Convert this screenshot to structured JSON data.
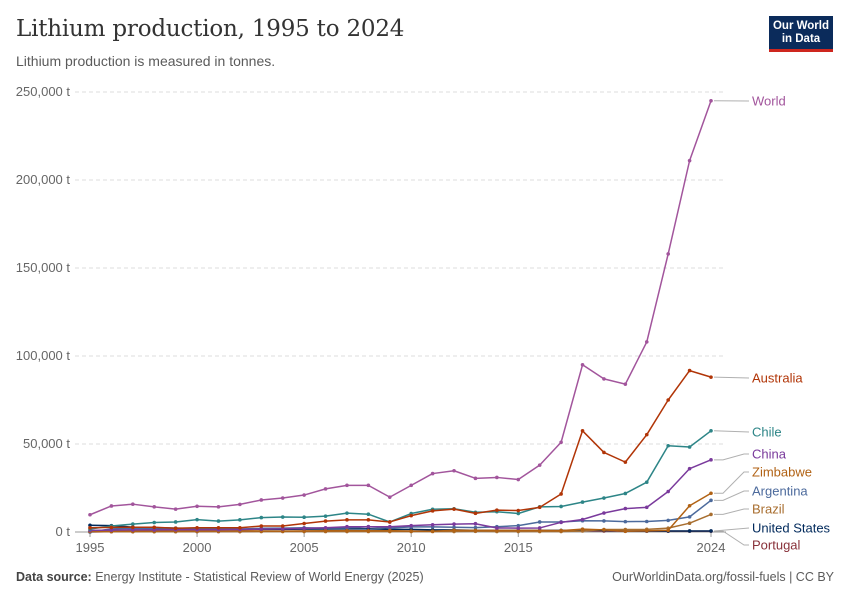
{
  "header": {
    "title": "Lithium production, 1995 to 2024",
    "subtitle": "Lithium production is measured in tonnes."
  },
  "logo": {
    "line1": "Our World",
    "line2": "in Data"
  },
  "footer": {
    "source_label": "Data source:",
    "source_text": "Energy Institute - Statistical Review of World Energy (2025)",
    "link": "OurWorldinData.org/fossil-fuels | CC BY"
  },
  "chart_data": {
    "type": "line",
    "title": "Lithium production, 1995 to 2024",
    "ylabel": "",
    "xlim": [
      1994.3,
      2024.7
    ],
    "ylim": [
      0,
      250000
    ],
    "y_ticks": [
      0,
      50000,
      100000,
      150000,
      200000,
      250000
    ],
    "y_tick_labels": [
      "0 t",
      "50,000 t",
      "100,000 t",
      "150,000 t",
      "200,000 t",
      "250,000 t"
    ],
    "x_ticks": [
      1995,
      2000,
      2005,
      2010,
      2015,
      2024
    ],
    "x_tick_labels": [
      "1995",
      "2000",
      "2005",
      "2010",
      "2015",
      "2024"
    ],
    "grid": "horizontal dashed",
    "x": [
      1995,
      1996,
      1997,
      1998,
      1999,
      2000,
      2001,
      2002,
      2003,
      2004,
      2005,
      2006,
      2007,
      2008,
      2009,
      2010,
      2011,
      2012,
      2013,
      2014,
      2015,
      2016,
      2017,
      2018,
      2019,
      2020,
      2021,
      2022,
      2023,
      2024
    ],
    "series": [
      {
        "name": "World",
        "color": "#a2559c",
        "values": [
          9800,
          14800,
          15800,
          14300,
          13000,
          14600,
          14300,
          15700,
          18200,
          19300,
          21000,
          24500,
          26500,
          26500,
          19800,
          26500,
          33200,
          34800,
          30500,
          31000,
          29800,
          38000,
          51000,
          95000,
          87000,
          84000,
          108000,
          158000,
          211000,
          245000
        ]
      },
      {
        "name": "Australia",
        "color": "#b13507",
        "values": [
          2400,
          2600,
          2700,
          2700,
          2100,
          2400,
          2400,
          2400,
          3400,
          3400,
          4800,
          6200,
          6900,
          6900,
          5700,
          9300,
          12000,
          13000,
          10600,
          12400,
          12200,
          14000,
          21600,
          57500,
          45200,
          39700,
          55300,
          75000,
          91700,
          88000
        ]
      },
      {
        "name": "Chile",
        "color": "#2d8587",
        "values": [
          1700,
          3400,
          4500,
          5400,
          5700,
          7000,
          6200,
          6900,
          8200,
          8500,
          8400,
          9000,
          10700,
          10100,
          5700,
          10500,
          12900,
          13200,
          11200,
          11500,
          10500,
          14300,
          14500,
          17000,
          19300,
          21900,
          28300,
          49000,
          48300,
          57500
        ]
      },
      {
        "name": "China",
        "color": "#7a3a9c",
        "values": [
          900,
          1100,
          1200,
          1200,
          1300,
          1300,
          1300,
          1400,
          1600,
          1800,
          2000,
          2400,
          3000,
          3000,
          3000,
          3600,
          4100,
          4500,
          4700,
          2300,
          2200,
          2300,
          5500,
          7100,
          10800,
          13300,
          14000,
          23000,
          36000,
          41000
        ]
      },
      {
        "name": "Zimbabwe",
        "color": "#b16214",
        "values": [
          350,
          400,
          450,
          500,
          550,
          600,
          550,
          700,
          600,
          500,
          650,
          700,
          750,
          700,
          750,
          500,
          450,
          1000,
          900,
          900,
          900,
          900,
          800,
          1600,
          1200,
          400,
          700,
          1000,
          14900,
          22000
        ]
      },
      {
        "name": "Argentina",
        "color": "#4c6a9c",
        "values": [
          0,
          1800,
          2000,
          1800,
          1800,
          1800,
          2000,
          1600,
          2100,
          2200,
          2400,
          2200,
          2300,
          3000,
          2300,
          2900,
          2900,
          2700,
          2500,
          3000,
          3600,
          5700,
          5700,
          6400,
          6300,
          5900,
          5970,
          6600,
          8600,
          18000
        ]
      },
      {
        "name": "Brazil",
        "color": "#a86e2f",
        "values": [
          200,
          200,
          200,
          200,
          200,
          300,
          300,
          300,
          300,
          300,
          300,
          300,
          300,
          300,
          300,
          300,
          300,
          300,
          400,
          300,
          300,
          300,
          300,
          600,
          1400,
          1400,
          1500,
          2200,
          5000,
          10000
        ]
      },
      {
        "name": "United States",
        "color": "#00295b",
        "values": [
          3800,
          3600,
          2800,
          2500,
          2200,
          2000,
          1800,
          1700,
          1500,
          1500,
          1600,
          1700,
          1800,
          1800,
          1500,
          1500,
          1200,
          1200,
          900,
          900,
          900,
          900,
          900,
          900,
          900,
          600,
          600,
          600,
          600,
          600
        ]
      },
      {
        "name": "Portugal",
        "color": "#883039",
        "values": [
          0,
          200,
          200,
          300,
          300,
          300,
          300,
          300,
          400,
          400,
          400,
          400,
          400,
          500,
          400,
          500,
          500,
          500,
          500,
          500,
          600,
          600,
          600,
          700,
          600,
          500,
          500,
          500,
          500,
          500
        ]
      }
    ],
    "label_y": {
      "World": 101,
      "Australia": 378,
      "Chile": 432,
      "China": 454,
      "Zimbabwe": 472,
      "Argentina": 491,
      "Brazil": 509,
      "United States": 528,
      "Portugal": 545
    }
  }
}
